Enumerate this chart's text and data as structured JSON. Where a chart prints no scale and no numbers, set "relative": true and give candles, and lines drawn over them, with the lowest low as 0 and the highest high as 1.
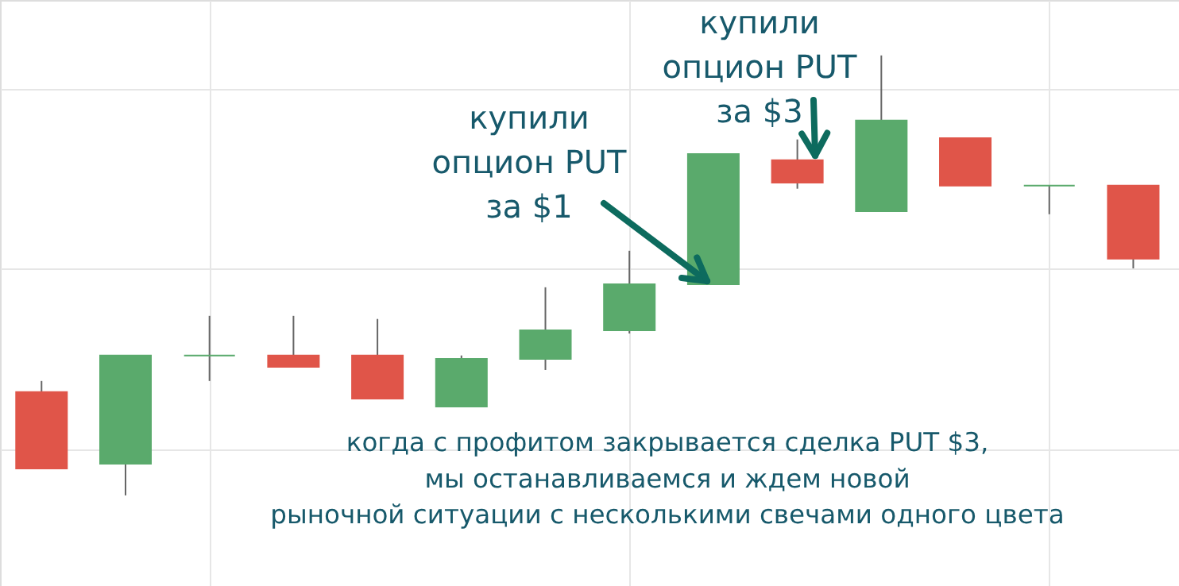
{
  "chart_data": {
    "type": "candlestick",
    "relative": true,
    "grid": true,
    "categories": [
      null,
      null,
      null,
      null,
      null,
      null,
      null,
      null,
      null,
      null,
      null,
      null,
      null,
      null
    ],
    "ohlc": [
      [
        0.235,
        0.26,
        0.061,
        0.061
      ],
      [
        0.072,
        0.318,
        0.0,
        0.318
      ],
      [
        0.318,
        0.408,
        0.26,
        0.318
      ],
      [
        0.318,
        0.408,
        0.292,
        0.292
      ],
      [
        0.318,
        0.401,
        0.22,
        0.22
      ],
      [
        0.202,
        0.318,
        0.202,
        0.31
      ],
      [
        0.31,
        0.473,
        0.285,
        0.375
      ],
      [
        0.375,
        0.556,
        0.368,
        0.48
      ],
      [
        0.48,
        0.776,
        0.48,
        0.776
      ],
      [
        0.762,
        0.809,
        0.697,
        0.711
      ],
      [
        0.646,
        1.0,
        0.646,
        0.852
      ],
      [
        0.812,
        0.812,
        0.704,
        0.704
      ],
      [
        0.704,
        0.704,
        0.639,
        0.704
      ],
      [
        0.704,
        0.704,
        0.516,
        0.538
      ]
    ],
    "colors": [
      "#e05549",
      "#5aaa6c",
      "#5aaa6c",
      "#e05549",
      "#e05549",
      "#5aaa6c",
      "#5aaa6c",
      "#5aaa6c",
      "#5aaa6c",
      "#e05549",
      "#5aaa6c",
      "#e05549",
      "#5aaa6c",
      "#e05549"
    ],
    "annotations": [
      "купили\nопцион PUT\nза $1",
      "купили\nопцион PUT\nза $3",
      "когда с профитом закрывается сделка PUT $3,\nмы останавливаемся и ждем новой\nрыночной ситуации с несколькими свечами одного цвета"
    ]
  }
}
